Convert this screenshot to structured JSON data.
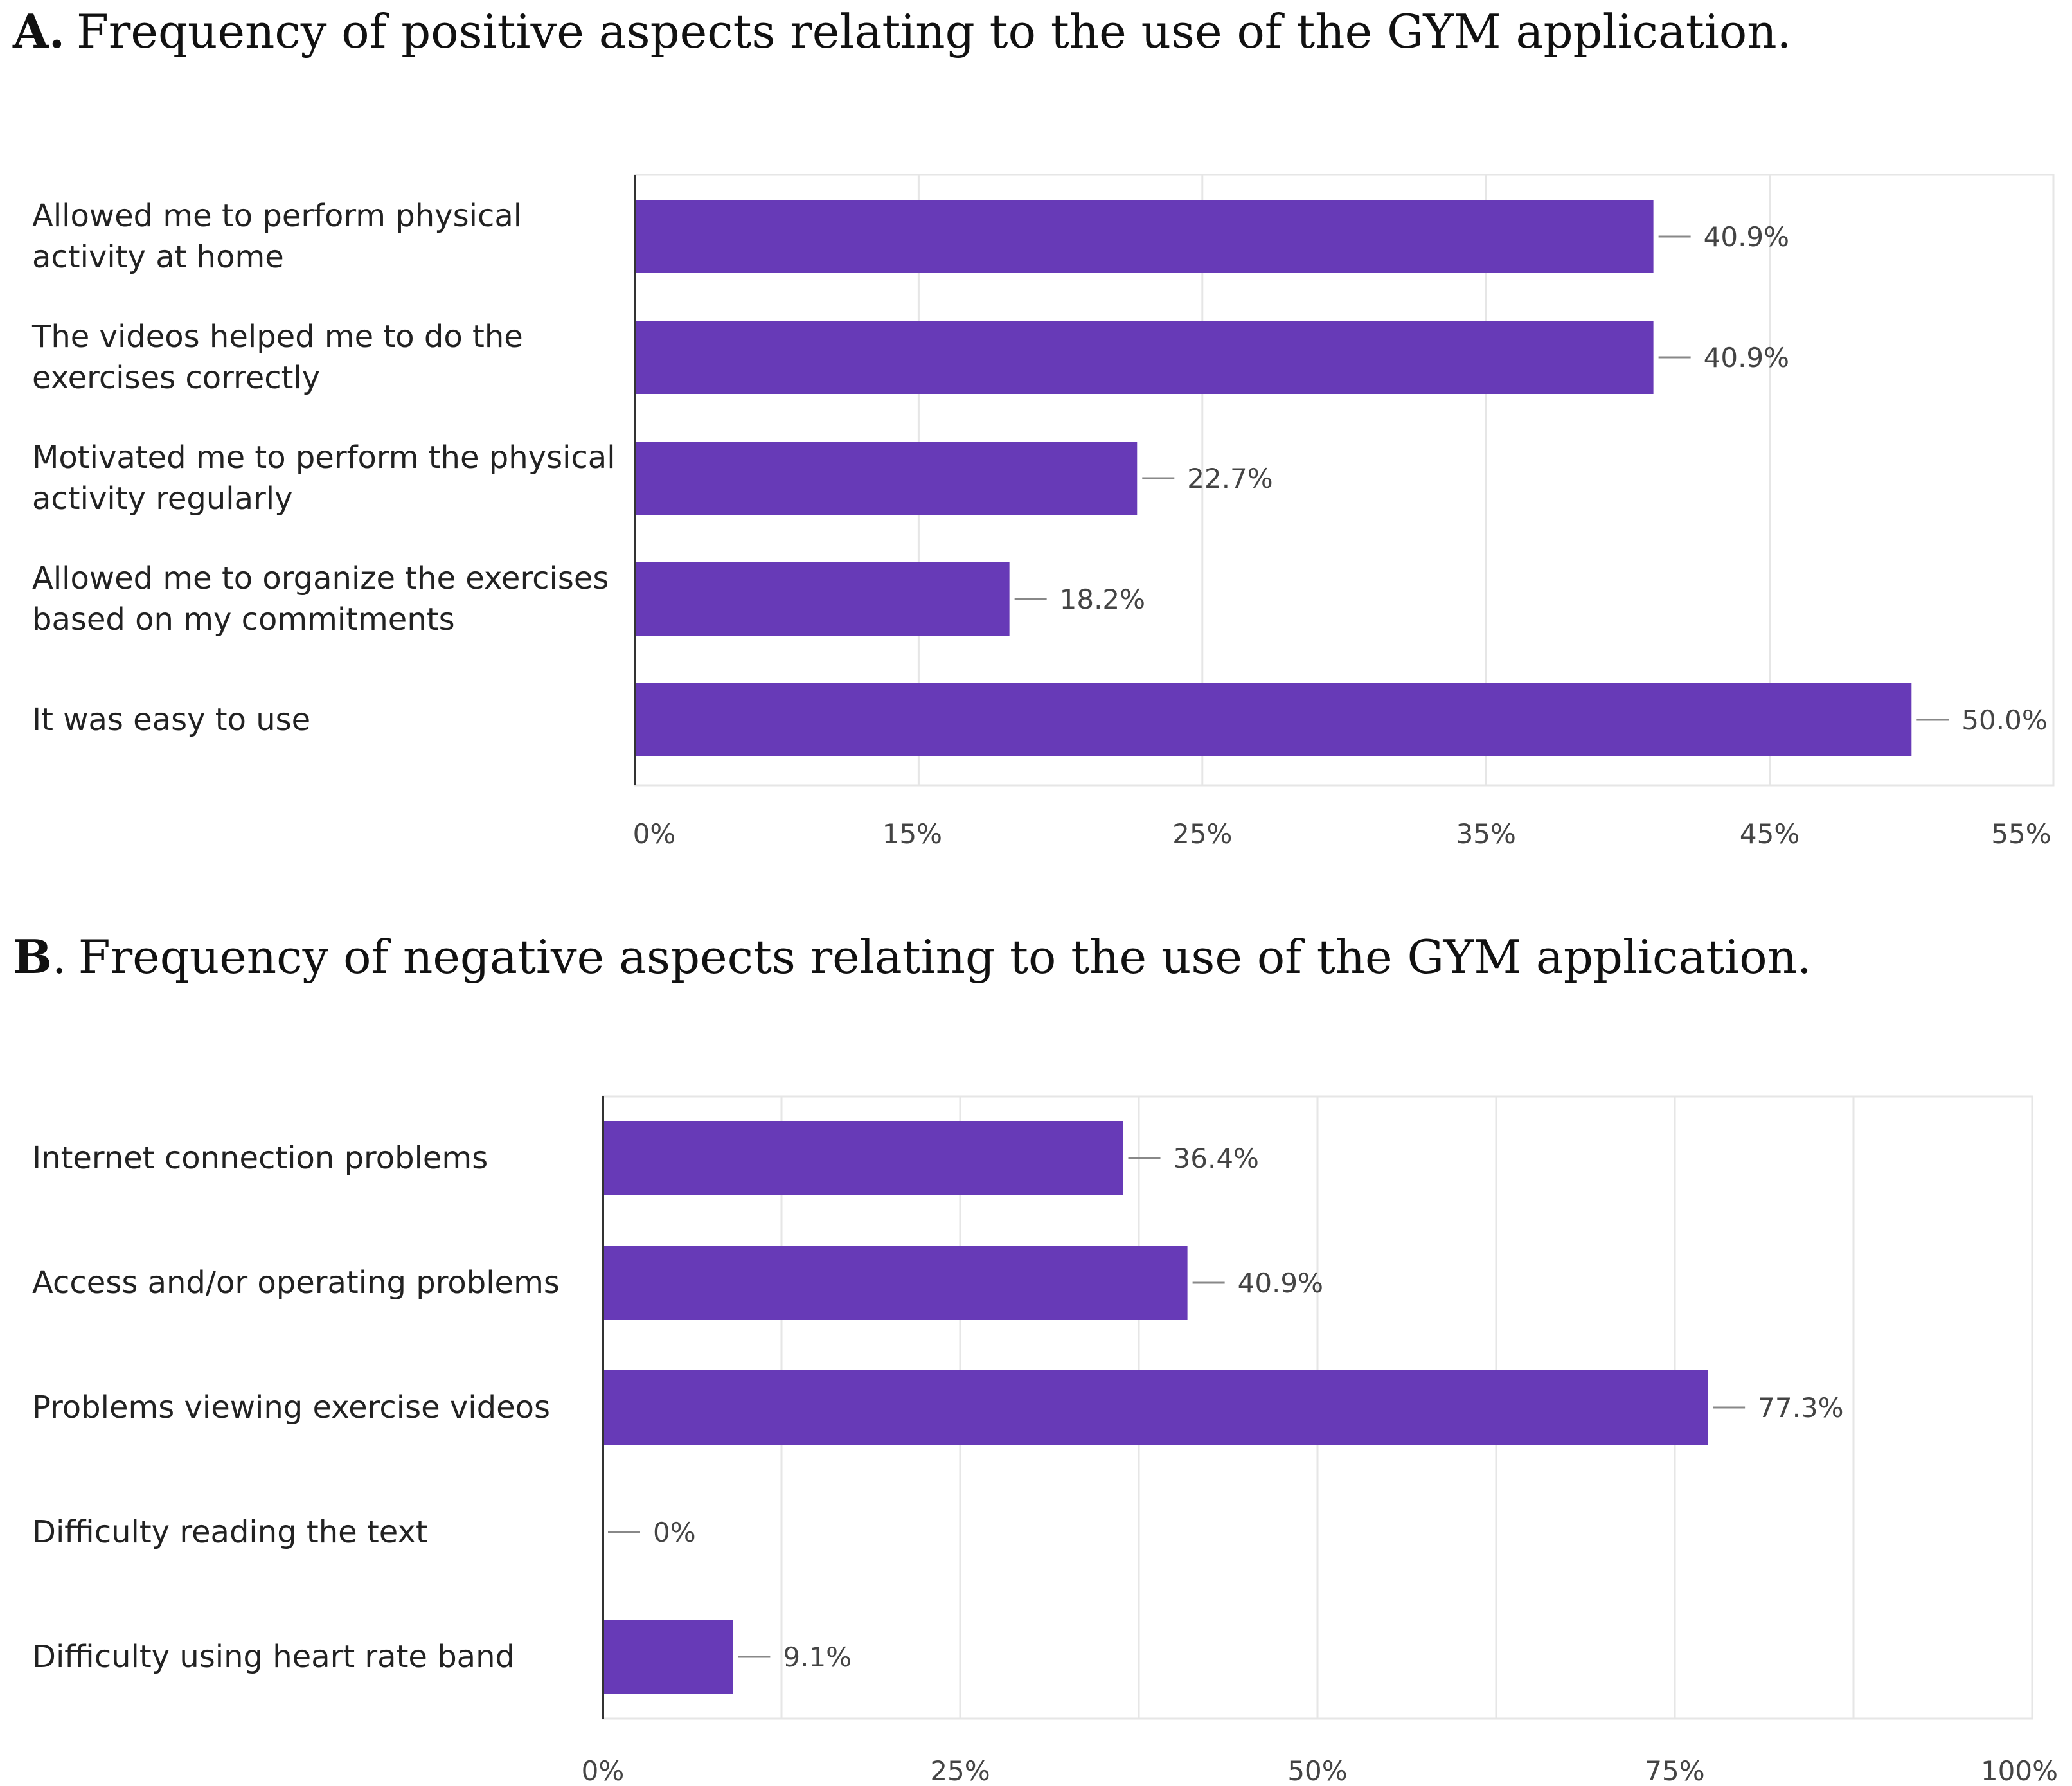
{
  "chart_data": [
    {
      "type": "bar",
      "orientation": "horizontal",
      "panel_letter": "A",
      "panel_punct": ".",
      "title": "Frequency of positive aspects relating to the use of the GYM application.",
      "categories": [
        [
          "Allowed me to perform physical",
          "activity at home"
        ],
        [
          "The videos helped me to do the",
          "exercises correctly"
        ],
        [
          "Motivated me to perform the physical",
          "activity regularly"
        ],
        [
          "Allowed me to organize the exercises",
          "based on my commitments"
        ],
        [
          "It was easy to use"
        ]
      ],
      "values": [
        40.9,
        40.9,
        22.7,
        18.2,
        50.0
      ],
      "value_labels": [
        "40.9%",
        "40.9%",
        "22.7%",
        "18.2%",
        "50.0%"
      ],
      "xticks": [
        "0%",
        "15%",
        "25%",
        "35%",
        "45%",
        "55%"
      ],
      "xlim": [
        0,
        55
      ],
      "color": "#673ab7"
    },
    {
      "type": "bar",
      "orientation": "horizontal",
      "panel_letter": "B",
      "panel_punct": ".",
      "title": "Frequency of negative aspects relating to the use of the GYM application.",
      "categories": [
        [
          "Internet connection problems"
        ],
        [
          "Access and/or operating problems"
        ],
        [
          "Problems viewing exercise videos"
        ],
        [
          "Difficulty reading the text"
        ],
        [
          "Difficulty using heart rate band"
        ]
      ],
      "values": [
        36.4,
        40.9,
        77.3,
        0,
        9.1
      ],
      "value_labels": [
        "36.4%",
        "40.9%",
        "77.3%",
        "0%",
        "9.1%"
      ],
      "xticks": [
        "0%",
        "25%",
        "50%",
        "75%",
        "100%"
      ],
      "xlim": [
        0,
        100
      ],
      "color": "#673ab7"
    }
  ]
}
